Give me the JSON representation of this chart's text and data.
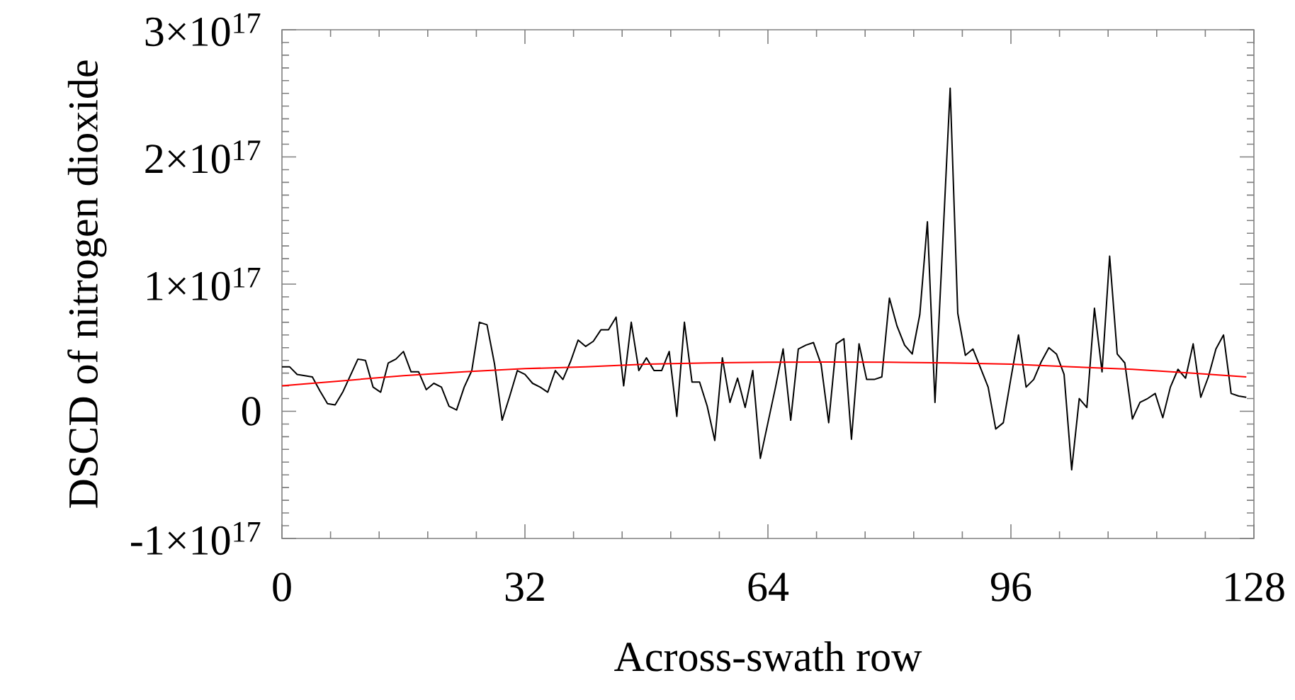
{
  "chart_data": {
    "type": "line",
    "xlabel": "Across-swath row",
    "ylabel": "DSCD of nitrogen dioxide",
    "xlim": [
      0,
      128
    ],
    "xticks": [
      0,
      32,
      64,
      96,
      128
    ],
    "ylim": [
      -1e+17,
      3e+17
    ],
    "yticks": [
      {
        "value": -1e+17,
        "label": "-1×10$^{17}$"
      },
      {
        "value": 0,
        "label": "0"
      },
      {
        "value": 1e+17,
        "label": "1×10$^{17}$"
      },
      {
        "value": 2e+17,
        "label": "2×10$^{17}$"
      },
      {
        "value": 3e+17,
        "label": "3×10$^{17}$"
      }
    ],
    "x": [
      0,
      1,
      2,
      3,
      4,
      5,
      6,
      7,
      8,
      9,
      10,
      11,
      12,
      13,
      14,
      15,
      16,
      17,
      18,
      19,
      20,
      21,
      22,
      23,
      24,
      25,
      26,
      27,
      28,
      29,
      30,
      31,
      32,
      33,
      34,
      35,
      36,
      37,
      38,
      39,
      40,
      41,
      42,
      43,
      44,
      45,
      46,
      47,
      48,
      49,
      50,
      51,
      52,
      53,
      54,
      55,
      56,
      57,
      58,
      59,
      60,
      61,
      62,
      63,
      64,
      65,
      66,
      67,
      68,
      69,
      70,
      71,
      72,
      73,
      74,
      75,
      76,
      77,
      78,
      79,
      80,
      81,
      82,
      83,
      84,
      85,
      86,
      87,
      88,
      89,
      90,
      91,
      92,
      93,
      94,
      95,
      96,
      97,
      98,
      99,
      100,
      101,
      102,
      103,
      104,
      105,
      106,
      107,
      108,
      109,
      110,
      111,
      112,
      113,
      114,
      115,
      116,
      117,
      118,
      119,
      120,
      121,
      122,
      123,
      124,
      125,
      126,
      127
    ],
    "series": [
      {
        "color": "#000000",
        "values": [
          3.5e+16,
          3.5e+16,
          2.9e+16,
          2.8e+16,
          2.7e+16,
          1.6e+16,
          6000000000000000.0,
          5000000000000000.0,
          1.5e+16,
          2.8e+16,
          4.1e+16,
          4e+16,
          1.9e+16,
          1.5e+16,
          3.8e+16,
          4.1e+16,
          4.7e+16,
          3.1e+16,
          3.1e+16,
          1.7e+16,
          2.2e+16,
          1.9e+16,
          4000000000000000.0,
          1000000000000000.0,
          1.9e+16,
          3.2e+16,
          7e+16,
          6.8e+16,
          3.7e+16,
          -7000000000000000.0,
          1.2e+16,
          3.2e+16,
          2.9e+16,
          2.2e+16,
          1.9e+16,
          1.5e+16,
          3.2e+16,
          2.5e+16,
          3.9e+16,
          5.6e+16,
          5.1e+16,
          5.5e+16,
          6.4e+16,
          6.4e+16,
          7.4e+16,
          2e+16,
          7e+16,
          3.2e+16,
          4.2e+16,
          3.2e+16,
          3.2e+16,
          4.7e+16,
          -4000000000000000.0,
          7e+16,
          2.3e+16,
          2.3e+16,
          4000000000000000.0,
          -2.3e+16,
          4.2e+16,
          7000000000000000.0,
          2.6e+16,
          3000000000000000.0,
          3.2e+16,
          -3.7e+16,
          -9000000000000000.0,
          1.9e+16,
          4.9e+16,
          -7000000000000000.0,
          4.9e+16,
          5.2e+16,
          5.4e+16,
          3.7e+16,
          -9000000000000000.0,
          5.3e+16,
          5.7e+16,
          -2.2e+16,
          5.3e+16,
          2.5e+16,
          2.5e+16,
          2.7e+16,
          8.9e+16,
          6.7e+16,
          5.2e+16,
          4.5e+16,
          7.6e+16,
          1.49e+17,
          7000000000000000.0,
          1.3e+17,
          2.54e+17,
          7.7e+16,
          4.4e+16,
          4.9e+16,
          3.4e+16,
          1.9e+16,
          -1.4e+16,
          -9000000000000000.0,
          2.6e+16,
          6e+16,
          1.9e+16,
          2.5e+16,
          3.9e+16,
          5e+16,
          4.5e+16,
          2.9e+16,
          -4.6e+16,
          1e+16,
          3000000000000000.0,
          8.1e+16,
          3.1e+16,
          1.22e+17,
          4.5e+16,
          3.8e+16,
          -6000000000000000.0,
          7000000000000000.0,
          1e+16,
          1.4e+16,
          -5000000000000000.0,
          1.9e+16,
          3.3e+16,
          2.6e+16,
          5.3e+16,
          1.1e+16,
          2.7e+16,
          4.9e+16,
          6e+16,
          1.4e+16,
          1.2e+16,
          1.1e+16
        ]
      },
      {
        "color": "#ff0000",
        "x": [
          0,
          8,
          16,
          24,
          32,
          40,
          48,
          56,
          64,
          72,
          80,
          88,
          96,
          104,
          112,
          120,
          127
        ],
        "values": [
          2e+16,
          2.4e+16,
          2.8e+16,
          3.1e+16,
          3.35e+16,
          3.5e+16,
          3.7e+16,
          3.8e+16,
          3.85e+16,
          3.87e+16,
          3.86e+16,
          3.8e+16,
          3.7e+16,
          3.5e+16,
          3.3e+16,
          3e+16,
          2.7e+16
        ]
      }
    ]
  }
}
